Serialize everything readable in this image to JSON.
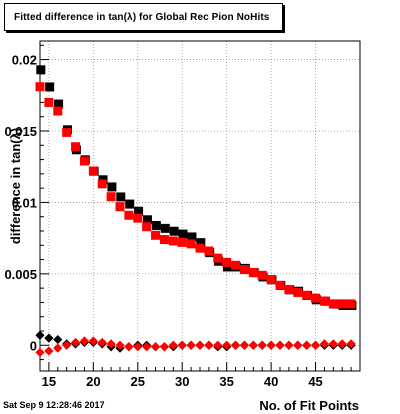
{
  "title": "Fitted difference in tan(λ) for Global Rec Pion NoHits",
  "footer_date": "Sat Sep  9 12:28:46 2017",
  "chart_data": {
    "type": "scatter",
    "title": "Fitted difference in tan(λ) for Global Rec Pion NoHits",
    "xlabel": "No. of Fit Points",
    "ylabel": "difference in tan(λ)",
    "xlim": [
      14,
      50
    ],
    "ylim": [
      -0.0018,
      0.0213
    ],
    "x_ticks": [
      15,
      20,
      25,
      30,
      35,
      40,
      45
    ],
    "x_tick_labels": [
      "15",
      "20",
      "25",
      "30",
      "35",
      "40",
      "45"
    ],
    "y_ticks": [
      0,
      0.005,
      0.01,
      0.015,
      0.02
    ],
    "y_tick_labels": [
      "0",
      "0.005",
      "0.01",
      "0.015",
      "0.02"
    ],
    "grid": true,
    "legend": "none",
    "series": [
      {
        "marker": "square",
        "color": "#000000",
        "x": [
          14,
          15,
          16,
          17,
          18,
          19,
          20,
          21,
          22,
          23,
          24,
          25,
          26,
          27,
          28,
          29,
          30,
          31,
          32,
          33,
          34,
          35,
          36,
          37,
          38,
          39,
          40,
          41,
          42,
          43,
          44,
          45,
          46,
          47,
          48,
          49
        ],
        "values": [
          0.0192,
          0.018,
          0.0168,
          0.015,
          0.0136,
          0.0129,
          0.0121,
          0.0115,
          0.011,
          0.0103,
          0.0098,
          0.0093,
          0.0087,
          0.0083,
          0.0081,
          0.0079,
          0.0077,
          0.0075,
          0.0071,
          0.0064,
          0.0058,
          0.0054,
          0.0054,
          0.0053,
          0.005,
          0.0047,
          0.0045,
          0.0041,
          0.0038,
          0.0037,
          0.0034,
          0.0031,
          0.003,
          0.0028,
          0.0027,
          0.0027
        ]
      },
      {
        "marker": "square",
        "color": "#ff0000",
        "x": [
          14,
          15,
          16,
          17,
          18,
          19,
          20,
          21,
          22,
          23,
          24,
          25,
          26,
          27,
          28,
          29,
          30,
          31,
          32,
          33,
          34,
          35,
          36,
          37,
          38,
          39,
          40,
          41,
          42,
          43,
          44,
          45,
          46,
          47,
          48,
          49
        ],
        "values": [
          0.0181,
          0.017,
          0.0164,
          0.0149,
          0.0139,
          0.0129,
          0.0122,
          0.0113,
          0.0104,
          0.0097,
          0.0091,
          0.0089,
          0.0083,
          0.0077,
          0.0074,
          0.0073,
          0.0072,
          0.0071,
          0.0068,
          0.0066,
          0.0061,
          0.0058,
          0.0056,
          0.0053,
          0.0051,
          0.0049,
          0.0046,
          0.0042,
          0.0039,
          0.0037,
          0.0035,
          0.0033,
          0.0031,
          0.0029,
          0.0029,
          0.0029
        ]
      },
      {
        "marker": "diamond",
        "color": "#000000",
        "x": [
          14,
          15,
          16,
          17,
          18,
          19,
          20,
          21,
          22,
          23,
          24,
          25,
          26,
          27,
          28,
          29,
          30,
          31,
          32,
          33,
          34,
          35,
          36,
          37,
          38,
          39,
          40,
          41,
          42,
          43,
          44,
          45,
          46,
          47,
          48,
          49
        ],
        "values": [
          0.0007,
          0.0005,
          0.0004,
          0.0001,
          0.0001,
          0.0002,
          0.0002,
          0.0001,
          -0.0001,
          -0.0002,
          -0.0001,
          0.0,
          0.0,
          -0.0001,
          -0.0001,
          -0.0001,
          0.0,
          0.0,
          0.0,
          0.0,
          -0.0001,
          -0.0001,
          0.0,
          0.0,
          0.0,
          0.0,
          0.0,
          0.0,
          0.0,
          0.0,
          0.0,
          0.0,
          0.0,
          0.0,
          0.0,
          0.0
        ]
      },
      {
        "marker": "diamond",
        "color": "#ff0000",
        "x": [
          14,
          15,
          16,
          17,
          18,
          19,
          20,
          21,
          22,
          23,
          24,
          25,
          26,
          27,
          28,
          29,
          30,
          31,
          32,
          33,
          34,
          35,
          36,
          37,
          38,
          39,
          40,
          41,
          42,
          43,
          44,
          45,
          46,
          47,
          48,
          49
        ],
        "values": [
          -0.0005,
          -0.0004,
          -0.0002,
          0.0,
          0.0002,
          0.0003,
          0.0003,
          0.0002,
          0.0001,
          0.0,
          -0.0001,
          -0.0001,
          -0.0001,
          -0.0001,
          -0.0001,
          0.0,
          0.0,
          0.0,
          0.0,
          0.0,
          0.0,
          0.0,
          0.0,
          0.0,
          0.0,
          0.0,
          0.0,
          0.0,
          0.0,
          0.0,
          0.0,
          0.0,
          0.0001,
          0.0001,
          0.0001,
          0.0001
        ]
      }
    ]
  }
}
